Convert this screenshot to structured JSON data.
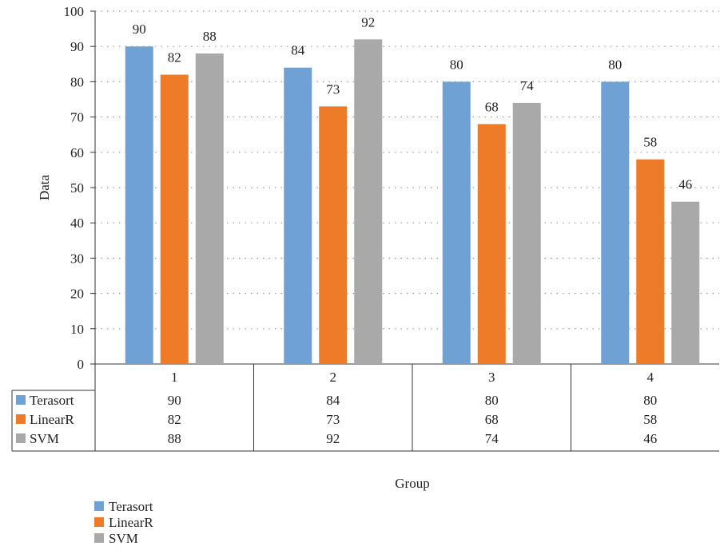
{
  "chart_data": {
    "type": "bar",
    "categories": [
      "1",
      "2",
      "3",
      "4"
    ],
    "series": [
      {
        "name": "Terasort",
        "values": [
          90,
          84,
          80,
          80
        ],
        "color": "#70a1d4"
      },
      {
        "name": "LinearR",
        "values": [
          82,
          73,
          68,
          58
        ],
        "color": "#ee7b27"
      },
      {
        "name": "SVM",
        "values": [
          88,
          92,
          74,
          46
        ],
        "color": "#a9a9a9"
      }
    ],
    "xlabel": "Group",
    "ylabel": "Data",
    "ylim": [
      0,
      100
    ],
    "yticks": [
      0,
      10,
      20,
      30,
      40,
      50,
      60,
      70,
      80,
      90,
      100
    ],
    "grid": true,
    "data_table": true,
    "legend_position": "bottom-left"
  }
}
